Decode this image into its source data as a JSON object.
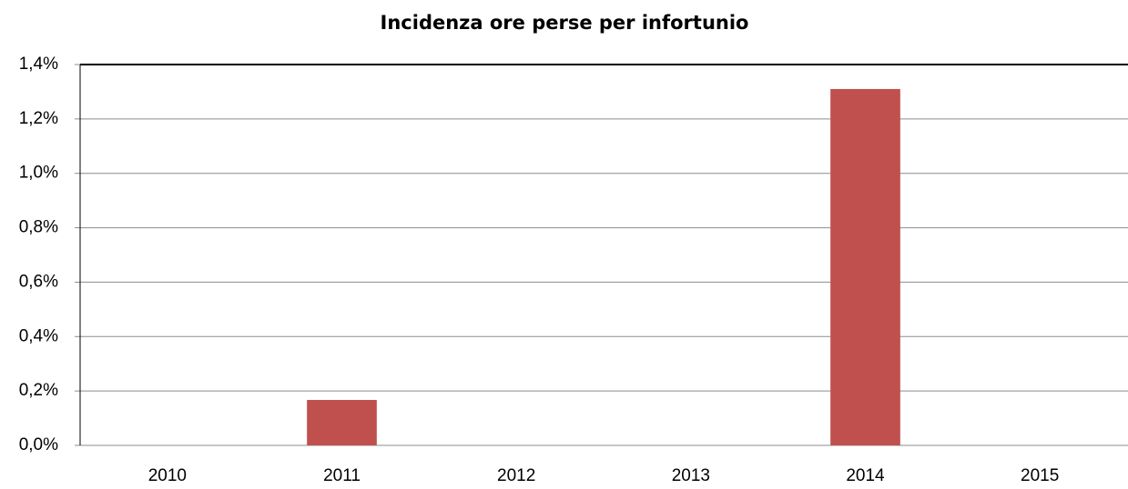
{
  "chart_data": {
    "type": "bar",
    "title": "Incidenza ore perse per infortunio",
    "categories": [
      "2010",
      "2011",
      "2012",
      "2013",
      "2014",
      "2015"
    ],
    "values": [
      0,
      0.167,
      0,
      0,
      1.31,
      0
    ],
    "color": "#c0504d",
    "ylim": [
      0,
      1.4
    ],
    "yticks": [
      {
        "value": 0,
        "label": "0,0%"
      },
      {
        "value": 0.2,
        "label": "0,2%"
      },
      {
        "value": 0.4,
        "label": "0,4%"
      },
      {
        "value": 0.6,
        "label": "0,6%"
      },
      {
        "value": 0.8,
        "label": "0,8%"
      },
      {
        "value": 1.0,
        "label": "1,0%"
      },
      {
        "value": 1.2,
        "label": "1,2%"
      },
      {
        "value": 1.4,
        "label": "1,4%"
      }
    ],
    "grid": true
  }
}
